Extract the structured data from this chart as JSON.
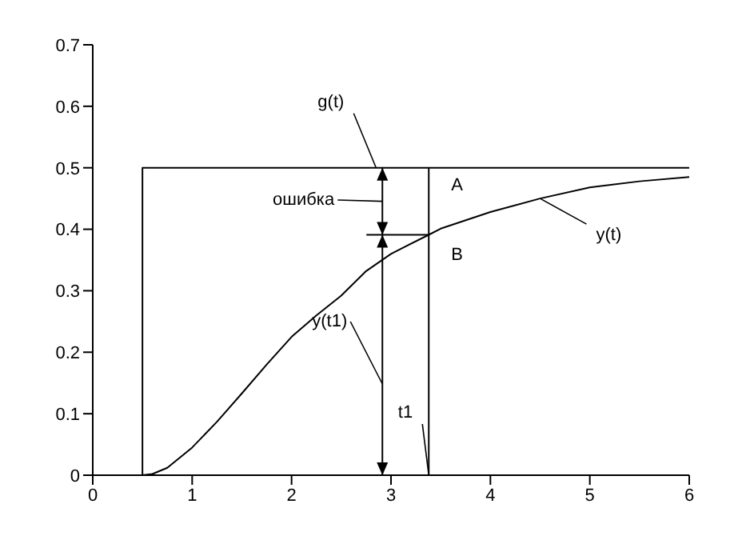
{
  "chart_data": {
    "type": "line",
    "xlim": [
      0,
      6
    ],
    "ylim": [
      0,
      0.7
    ],
    "xticks": [
      0,
      1,
      2,
      3,
      4,
      5,
      6
    ],
    "yticks": [
      0,
      0.1,
      0.2,
      0.3,
      0.4,
      0.5,
      0.6,
      0.7
    ],
    "grid": false,
    "legend": false,
    "marker": "none",
    "line_style": "solid",
    "series": [
      {
        "color": "#000000",
        "x": [
          0.5,
          0.5,
          6
        ],
        "values": [
          0,
          0.5,
          0.5
        ]
      },
      {
        "color": "#000000",
        "x": [
          0.5,
          0.6,
          0.75,
          1,
          1.25,
          1.5,
          1.75,
          2,
          2.25,
          2.5,
          2.75,
          3,
          3.38,
          3.5,
          4,
          4.5,
          5,
          5.5,
          6
        ],
        "values": [
          0,
          0.002,
          0.012,
          0.045,
          0.087,
          0.133,
          0.18,
          0.225,
          0.26,
          0.292,
          0.332,
          0.36,
          0.391,
          0.401,
          0.428,
          0.45,
          0.468,
          0.478,
          0.485
        ]
      },
      {
        "color": "#000000",
        "x": [
          3.38,
          3.38
        ],
        "values": [
          0,
          0.5
        ]
      }
    ],
    "annotations": [
      {
        "text": "g(t)",
        "x": 2.85,
        "y": 0.5
      },
      "ошибка",
      {
        "text": "A",
        "x": 3.38,
        "y": 0.5
      },
      {
        "text": "B",
        "x": 3.38,
        "y": 0.391
      },
      {
        "text": "y(t)",
        "x": 4.5,
        "y": 0.45
      },
      "y(t1)",
      {
        "text": "t1",
        "x": 3.38,
        "y": 0
      }
    ]
  }
}
